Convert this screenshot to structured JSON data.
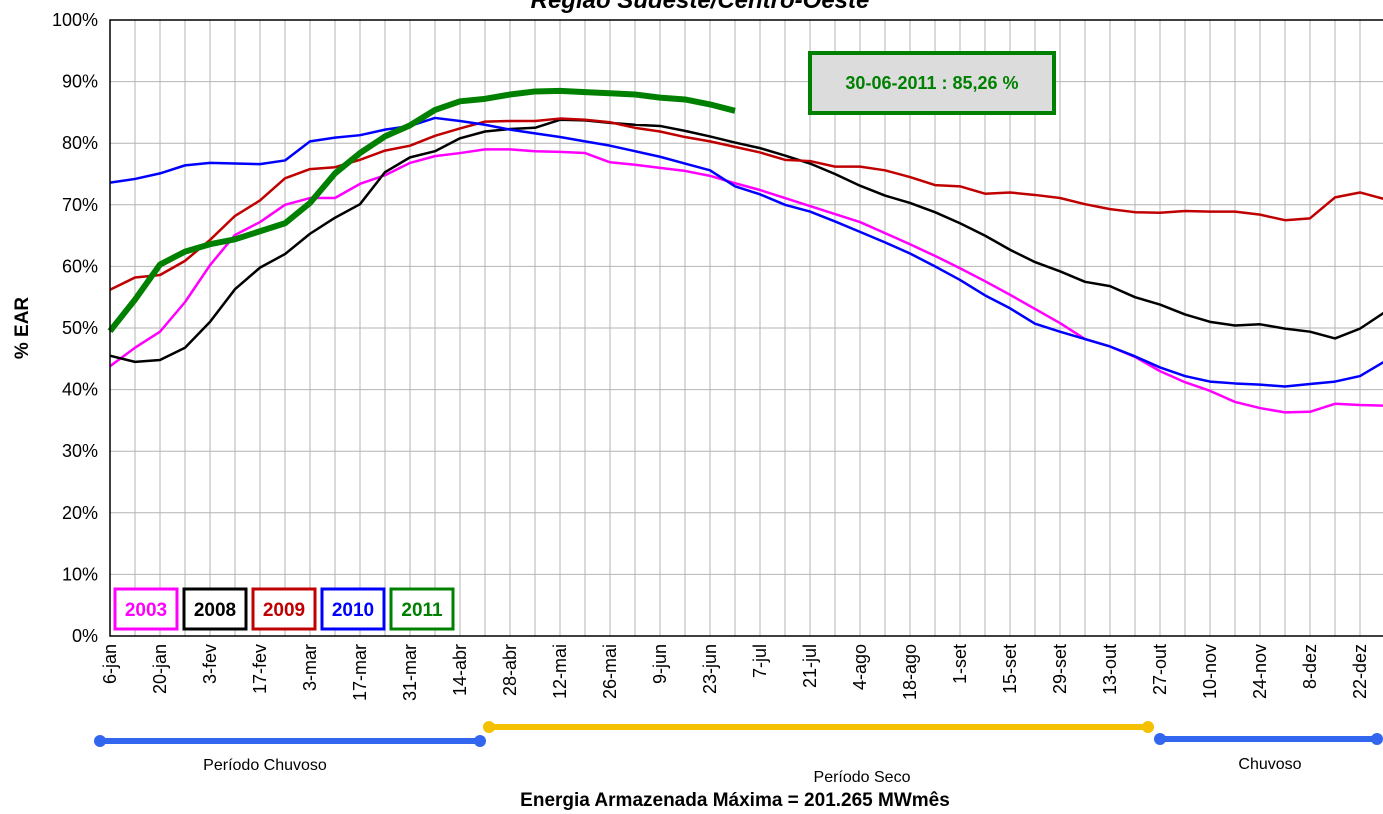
{
  "chart_data": {
    "type": "line",
    "title": "Região Sudeste/Centro-Oeste",
    "y_label": "% EAR",
    "annotation": "30-06-2011 : 85,26 %",
    "periods": [
      "Período Chuvoso",
      "Período Seco",
      "Chuvoso"
    ],
    "footer": "Energia Armazenada Máxima = 201.265 MWmês",
    "grid": true,
    "legend": "bottom-left",
    "ylim": [
      0,
      100
    ],
    "yticks": [
      {
        "value": 0,
        "label": "0%"
      },
      {
        "value": 10,
        "label": "10%"
      },
      {
        "value": 20,
        "label": "20%"
      },
      {
        "value": 30,
        "label": "30%"
      },
      {
        "value": 40,
        "label": "40%"
      },
      {
        "value": 50,
        "label": "50%"
      },
      {
        "value": 60,
        "label": "60%"
      },
      {
        "value": 70,
        "label": "70%"
      },
      {
        "value": 80,
        "label": "80%"
      },
      {
        "value": 90,
        "label": "90%"
      },
      {
        "value": 100,
        "label": "100%"
      }
    ],
    "categories": [
      "6-jan",
      null,
      "20-jan",
      null,
      "3-fev",
      null,
      "17-fev",
      null,
      "3-mar",
      null,
      "17-mar",
      null,
      "31-mar",
      null,
      "14-abr",
      null,
      "28-abr",
      null,
      "12-mai",
      null,
      "26-mai",
      null,
      "9-jun",
      null,
      "23-jun",
      null,
      "7-jul",
      null,
      "21-jul",
      null,
      "4-ago",
      null,
      "18-ago",
      null,
      "1-set",
      null,
      "15-set",
      null,
      "29-set",
      null,
      "13-out",
      null,
      "27-out",
      null,
      "10-nov",
      null,
      "24-nov",
      null,
      "8-dez",
      null,
      "22-dez",
      null
    ],
    "series": [
      {
        "name": "2003",
        "color": "#ff00ff",
        "line_width": 2.5,
        "values": [
          43.8,
          46.8,
          49.4,
          54.2,
          60.2,
          65.1,
          67.2,
          70,
          71.1,
          71.1,
          73.4,
          74.8,
          76.8,
          77.9,
          78.4,
          79,
          79,
          78.7,
          78.6,
          78.4,
          76.9,
          76.5,
          76,
          75.5,
          74.7,
          73.5,
          72.4,
          71.1,
          69.8,
          68.5,
          67.2,
          65.4,
          63.6,
          61.7,
          59.7,
          57.6,
          55.4,
          53.1,
          50.8,
          48.2,
          47,
          45.3,
          43,
          41.2,
          39.8,
          38,
          37,
          36.3,
          36.4,
          37.7,
          37.5,
          37.4
        ]
      },
      {
        "name": "2008",
        "color": "#000000",
        "line_width": 2.5,
        "values": [
          45.5,
          44.5,
          44.8,
          46.8,
          51,
          56.3,
          59.8,
          62,
          65.3,
          67.9,
          70.1,
          75.3,
          77.7,
          78.7,
          80.8,
          81.9,
          82.3,
          82.5,
          83.8,
          83.7,
          83.3,
          83,
          82.8,
          82,
          81.1,
          80.1,
          79.2,
          78,
          76.7,
          75,
          73.1,
          71.5,
          70.3,
          68.8,
          67,
          65,
          62.7,
          60.7,
          59.2,
          57.5,
          56.8,
          55,
          53.8,
          52.2,
          51,
          50.4,
          50.6,
          49.9,
          49.4,
          48.3,
          49.9,
          52.6
        ]
      },
      {
        "name": "2009",
        "color": "#c00000",
        "line_width": 2.5,
        "values": [
          56.2,
          58.2,
          58.6,
          60.9,
          64.3,
          68.2,
          70.7,
          74.3,
          75.8,
          76.1,
          77.3,
          78.8,
          79.6,
          81.2,
          82.4,
          83.5,
          83.6,
          83.6,
          84,
          83.8,
          83.4,
          82.5,
          81.9,
          81,
          80.3,
          79.4,
          78.5,
          77.3,
          77.1,
          76.2,
          76.2,
          75.6,
          74.5,
          73.2,
          73,
          71.8,
          72,
          71.6,
          71.1,
          70.1,
          69.3,
          68.8,
          68.7,
          69,
          68.9,
          68.9,
          68.4,
          67.5,
          67.8,
          71.2,
          72,
          70.9
        ]
      },
      {
        "name": "2010",
        "color": "#0000ff",
        "line_width": 2.5,
        "values": [
          73.6,
          74.2,
          75.1,
          76.4,
          76.8,
          76.7,
          76.6,
          77.2,
          80.3,
          80.9,
          81.3,
          82.2,
          82.8,
          84.1,
          83.6,
          83,
          82.2,
          81.6,
          81,
          80.3,
          79.6,
          78.7,
          77.8,
          76.7,
          75.6,
          73,
          71.7,
          70,
          68.9,
          67.3,
          65.6,
          63.9,
          62.1,
          60,
          57.8,
          55.3,
          53.2,
          50.7,
          49.4,
          48.2,
          47,
          45.4,
          43.6,
          42.2,
          41.3,
          41,
          40.8,
          40.5,
          40.9,
          41.3,
          42.2,
          44.6
        ]
      },
      {
        "name": "2011",
        "color": "#008000",
        "line_width": 6,
        "values": [
          49.5,
          54.6,
          60.3,
          62.4,
          63.6,
          64.4,
          65.7,
          67,
          70.3,
          75.1,
          78.4,
          81.1,
          82.9,
          85.4,
          86.8,
          87.2,
          87.9,
          88.4,
          88.5,
          88.3,
          88.1,
          87.9,
          87.4,
          87.1,
          86.3,
          85.26,
          null,
          null,
          null,
          null,
          null,
          null,
          null,
          null,
          null,
          null,
          null,
          null,
          null,
          null,
          null,
          null,
          null,
          null,
          null,
          null,
          null,
          null,
          null,
          null,
          null,
          null
        ]
      }
    ]
  }
}
